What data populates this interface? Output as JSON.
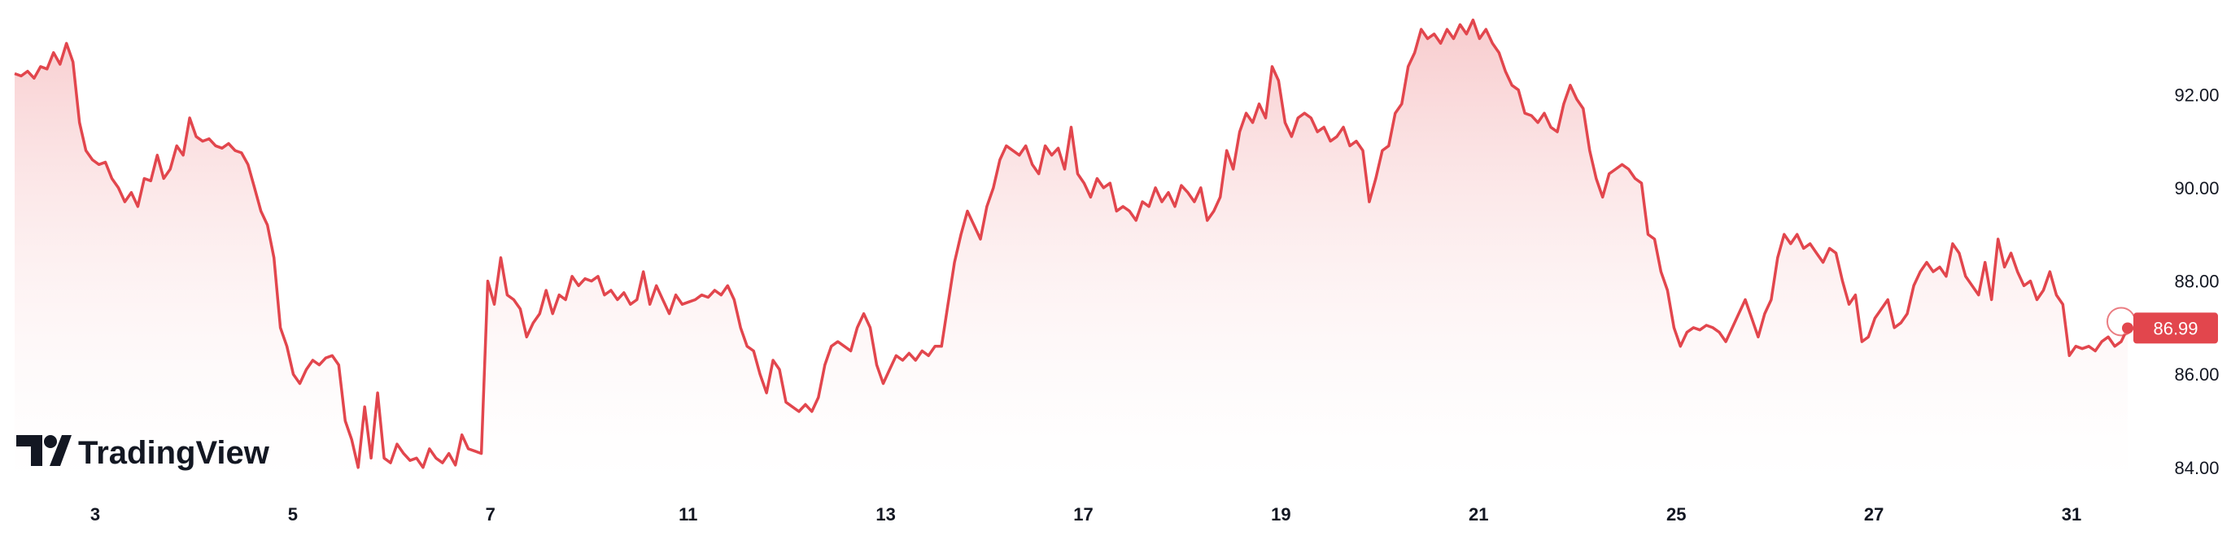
{
  "brand": {
    "logo_icon": "tradingview-logo-icon",
    "name": "TradingView"
  },
  "colors": {
    "line": "#e2464d",
    "fill_top": "#f7c6c8",
    "fill_bottom": "#ffffff",
    "last_badge": "#e2464d",
    "text": "#131722"
  },
  "chart_data": {
    "type": "area",
    "title": "",
    "xlabel": "",
    "ylabel": "",
    "x_tick_labels": [
      "3",
      "5",
      "7",
      "11",
      "13",
      "17",
      "19",
      "21",
      "25",
      "27",
      "31"
    ],
    "y_tick_labels": [
      "92.00",
      "90.00",
      "88.00",
      "86.00",
      "84.00"
    ],
    "y_ticks": [
      92,
      90,
      88,
      86,
      84
    ],
    "ylim": [
      83.7,
      93.75
    ],
    "last_value": 86.99,
    "last_value_label": "86.99",
    "grid": false,
    "legend": "none",
    "series": [
      {
        "values": [
          92.45,
          92.4,
          92.5,
          92.35,
          92.6,
          92.55,
          92.9,
          92.65,
          93.1,
          92.7,
          91.4,
          90.8,
          90.6,
          90.5,
          90.55,
          90.2,
          90.0,
          89.7,
          89.9,
          89.6,
          90.2,
          90.15,
          90.7,
          90.2,
          90.4,
          90.9,
          90.7,
          91.5,
          91.1,
          91.0,
          91.05,
          90.9,
          90.85,
          90.95,
          90.8,
          90.75,
          90.5,
          90.0,
          89.5,
          89.2,
          88.5,
          87.0,
          86.6,
          86.0,
          85.8,
          86.1,
          86.3,
          86.2,
          86.35,
          86.4,
          86.2,
          85.0,
          84.6,
          84.0,
          85.3,
          84.2,
          85.6,
          84.2,
          84.1,
          84.5,
          84.3,
          84.15,
          84.2,
          84.0,
          84.4,
          84.2,
          84.1,
          84.3,
          84.05,
          84.7,
          84.4,
          84.35,
          84.3,
          88.0,
          87.5,
          88.5,
          87.7,
          87.6,
          87.4,
          86.8,
          87.1,
          87.3,
          87.8,
          87.3,
          87.7,
          87.6,
          88.1,
          87.9,
          88.05,
          88.0,
          88.1,
          87.7,
          87.8,
          87.6,
          87.75,
          87.5,
          87.6,
          88.2,
          87.5,
          87.9,
          87.6,
          87.3,
          87.7,
          87.5,
          87.55,
          87.6,
          87.7,
          87.65,
          87.8,
          87.7,
          87.9,
          87.6,
          87.0,
          86.6,
          86.5,
          86.0,
          85.6,
          86.3,
          86.1,
          85.4,
          85.3,
          85.2,
          85.35,
          85.2,
          85.5,
          86.2,
          86.6,
          86.7,
          86.6,
          86.5,
          87.0,
          87.3,
          87.0,
          86.2,
          85.8,
          86.1,
          86.4,
          86.3,
          86.45,
          86.3,
          86.5,
          86.4,
          86.6,
          86.6,
          87.5,
          88.4,
          89.0,
          89.5,
          89.2,
          88.9,
          89.6,
          90.0,
          90.6,
          90.9,
          90.8,
          90.7,
          90.9,
          90.5,
          90.3,
          90.9,
          90.7,
          90.85,
          90.4,
          91.3,
          90.3,
          90.1,
          89.8,
          90.2,
          90.0,
          90.1,
          89.5,
          89.6,
          89.5,
          89.3,
          89.7,
          89.6,
          90.0,
          89.7,
          89.9,
          89.6,
          90.05,
          89.9,
          89.7,
          90.0,
          89.3,
          89.5,
          89.8,
          90.8,
          90.4,
          91.2,
          91.6,
          91.4,
          91.8,
          91.5,
          92.6,
          92.3,
          91.4,
          91.1,
          91.5,
          91.6,
          91.5,
          91.2,
          91.3,
          91.0,
          91.1,
          91.3,
          90.9,
          91.0,
          90.8,
          89.7,
          90.2,
          90.8,
          90.9,
          91.6,
          91.8,
          92.6,
          92.9,
          93.4,
          93.2,
          93.3,
          93.1,
          93.4,
          93.2,
          93.5,
          93.3,
          93.6,
          93.2,
          93.4,
          93.1,
          92.9,
          92.5,
          92.2,
          92.1,
          91.6,
          91.55,
          91.4,
          91.6,
          91.3,
          91.2,
          91.8,
          92.2,
          91.9,
          91.7,
          90.8,
          90.2,
          89.8,
          90.3,
          90.4,
          90.5,
          90.4,
          90.2,
          90.1,
          89.0,
          88.9,
          88.2,
          87.8,
          87.0,
          86.6,
          86.9,
          87.0,
          86.95,
          87.05,
          87.0,
          86.9,
          86.7,
          87.0,
          87.3,
          87.6,
          87.2,
          86.8,
          87.3,
          87.6,
          88.5,
          89.0,
          88.8,
          89.0,
          88.7,
          88.8,
          88.6,
          88.4,
          88.7,
          88.6,
          88.0,
          87.5,
          87.7,
          86.7,
          86.8,
          87.2,
          87.4,
          87.6,
          87.0,
          87.1,
          87.3,
          87.9,
          88.2,
          88.4,
          88.2,
          88.3,
          88.1,
          88.8,
          88.6,
          88.1,
          87.9,
          87.7,
          88.4,
          87.6,
          88.9,
          88.3,
          88.6,
          88.2,
          87.9,
          88.0,
          87.6,
          87.8,
          88.2,
          87.7,
          87.5,
          86.4,
          86.6,
          86.55,
          86.6,
          86.5,
          86.7,
          86.8,
          86.6,
          86.7,
          86.99
        ]
      }
    ]
  }
}
